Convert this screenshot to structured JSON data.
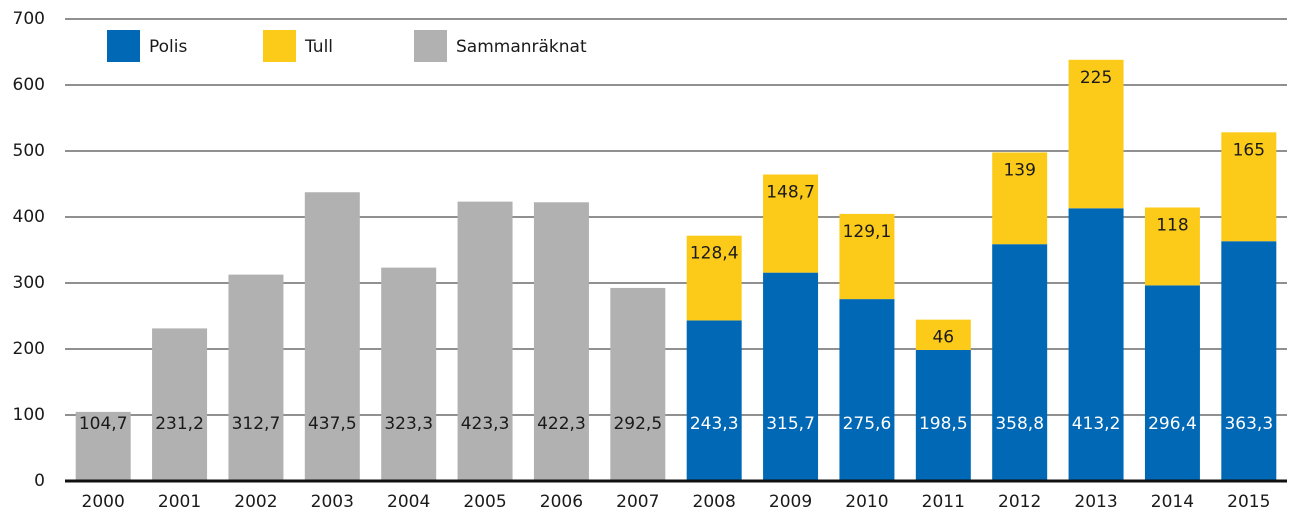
{
  "chart_data": {
    "type": "stacked_bar",
    "categories": [
      "2000",
      "2001",
      "2002",
      "2003",
      "2004",
      "2005",
      "2006",
      "2007",
      "2008",
      "2009",
      "2010",
      "2011",
      "2012",
      "2013",
      "2014",
      "2015"
    ],
    "series": [
      {
        "name": "Polis",
        "color": "#0068b4",
        "values": [
          null,
          null,
          null,
          null,
          null,
          null,
          null,
          null,
          243.3,
          315.7,
          275.6,
          198.5,
          358.8,
          413.2,
          296.4,
          363.3
        ],
        "value_labels": [
          null,
          null,
          null,
          null,
          null,
          null,
          null,
          null,
          "243,3",
          "315,7",
          "275,6",
          "198,5",
          "358,8",
          "413,2",
          "296,4",
          "363,3"
        ]
      },
      {
        "name": "Tull",
        "color": "#fccb1a",
        "values": [
          null,
          null,
          null,
          null,
          null,
          null,
          null,
          null,
          128.4,
          148.7,
          129.1,
          46,
          139,
          225,
          118,
          165
        ],
        "value_labels": [
          null,
          null,
          null,
          null,
          null,
          null,
          null,
          null,
          "128,4",
          "148,7",
          "129,1",
          "46",
          "139",
          "225",
          "118",
          "165"
        ]
      },
      {
        "name": "Sammanräknat",
        "color": "#b1b1b1",
        "values": [
          104.7,
          231.2,
          312.7,
          437.5,
          323.3,
          423.3,
          422.3,
          292.5,
          null,
          null,
          null,
          null,
          null,
          null,
          null,
          null
        ],
        "value_labels": [
          "104,7",
          "231,2",
          "312,7",
          "437,5",
          "323,3",
          "423,3",
          "422,3",
          "292,5",
          null,
          null,
          null,
          null,
          null,
          null,
          null,
          null
        ]
      }
    ],
    "ylim": [
      0,
      700
    ],
    "yticks": [
      0,
      100,
      200,
      300,
      400,
      500,
      600,
      700
    ],
    "grid": true,
    "legend": "top"
  }
}
